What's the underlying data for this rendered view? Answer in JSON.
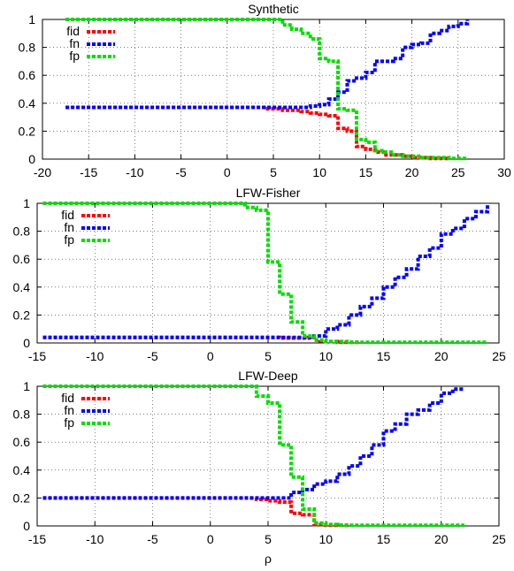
{
  "chart_data": [
    {
      "type": "line",
      "title": "Synthetic",
      "xlabel": "",
      "xlim": [
        -20,
        30
      ],
      "ylim": [
        0,
        1
      ],
      "xticks": [
        -20,
        -15,
        -10,
        -5,
        0,
        5,
        10,
        15,
        20,
        25,
        30
      ],
      "yticks": [
        0,
        0.2,
        0.4,
        0.6,
        0.8,
        1
      ],
      "ytick_labels": [
        "0",
        "0.2",
        "0.4",
        "0.6",
        "0.8",
        "1"
      ],
      "grid": true,
      "legend_position": "top-left",
      "series": [
        {
          "name": "fid",
          "color": "#ff0000",
          "x": [
            -17.5,
            3,
            4,
            5,
            6,
            7,
            8,
            9,
            10,
            11,
            12,
            13,
            14,
            15,
            16,
            17,
            18,
            19,
            20,
            21,
            22,
            23,
            24
          ],
          "y": [
            0.37,
            0.37,
            0.36,
            0.36,
            0.35,
            0.35,
            0.34,
            0.33,
            0.32,
            0.31,
            0.22,
            0.2,
            0.09,
            0.07,
            0.05,
            0.03,
            0.03,
            0.02,
            0.01,
            0.01,
            0.005,
            0.005,
            0.005
          ]
        },
        {
          "name": "fn",
          "color": "#0000ff",
          "x": [
            -17.5,
            8,
            9,
            10,
            11,
            12,
            13,
            14,
            15,
            16,
            17,
            18,
            19,
            20,
            21,
            22,
            23,
            24,
            25,
            26
          ],
          "y": [
            0.37,
            0.37,
            0.38,
            0.39,
            0.43,
            0.48,
            0.56,
            0.58,
            0.62,
            0.7,
            0.7,
            0.72,
            0.8,
            0.82,
            0.83,
            0.9,
            0.92,
            0.95,
            0.97,
            1.0
          ]
        },
        {
          "name": "fp",
          "color": "#00dd00",
          "x": [
            -17.5,
            5,
            6,
            7,
            8,
            9,
            10,
            11,
            12,
            13,
            14,
            15,
            16,
            17,
            18,
            19,
            20,
            21,
            22,
            23,
            24,
            25,
            26
          ],
          "y": [
            1.0,
            1.0,
            0.96,
            0.93,
            0.9,
            0.86,
            0.72,
            0.7,
            0.36,
            0.35,
            0.14,
            0.12,
            0.06,
            0.05,
            0.03,
            0.02,
            0.02,
            0.01,
            0.01,
            0.01,
            0.005,
            0.005,
            0.005
          ]
        }
      ]
    },
    {
      "type": "line",
      "title": "LFW-Fisher",
      "xlabel": "",
      "xlim": [
        -15,
        25
      ],
      "ylim": [
        0,
        1
      ],
      "xticks": [
        -15,
        -10,
        -5,
        0,
        5,
        10,
        15,
        20,
        25
      ],
      "yticks": [
        0,
        0.2,
        0.4,
        0.6,
        0.8,
        1
      ],
      "ytick_labels": [
        "0",
        "0.2",
        "0.4",
        "0.6",
        "0.8",
        "1"
      ],
      "grid": true,
      "legend_position": "top-left",
      "series": [
        {
          "name": "fid",
          "color": "#ff0000",
          "x": [
            -14.5,
            5,
            6,
            7,
            8,
            8.5,
            9,
            9.5,
            10,
            11,
            12,
            13
          ],
          "y": [
            0.04,
            0.04,
            0.035,
            0.035,
            0.035,
            0.04,
            0.02,
            0.015,
            0.01,
            0.005,
            0.005,
            0.005
          ]
        },
        {
          "name": "fn",
          "color": "#0000ff",
          "x": [
            -14.5,
            8,
            9,
            10,
            11,
            12,
            13,
            14,
            15,
            16,
            17,
            18,
            19,
            20,
            21,
            22,
            23,
            24
          ],
          "y": [
            0.04,
            0.04,
            0.05,
            0.1,
            0.13,
            0.2,
            0.26,
            0.32,
            0.4,
            0.47,
            0.53,
            0.62,
            0.68,
            0.78,
            0.82,
            0.89,
            0.94,
            1.0
          ]
        },
        {
          "name": "fp",
          "color": "#00dd00",
          "x": [
            -14.5,
            2.5,
            3,
            4,
            5,
            6,
            7,
            8,
            9,
            10,
            11,
            12,
            24
          ],
          "y": [
            1.0,
            1.0,
            0.97,
            0.95,
            0.58,
            0.35,
            0.15,
            0.05,
            0.02,
            0.01,
            0.01,
            0.005,
            0.005
          ]
        }
      ]
    },
    {
      "type": "line",
      "title": "LFW-Deep",
      "xlabel": "ρ",
      "xlim": [
        -15,
        25
      ],
      "ylim": [
        0,
        1
      ],
      "xticks": [
        -15,
        -10,
        -5,
        0,
        5,
        10,
        15,
        20,
        25
      ],
      "yticks": [
        0,
        0.2,
        0.4,
        0.6,
        0.8,
        1
      ],
      "ytick_labels": [
        "0",
        "0.2",
        "0.4",
        "0.6",
        "0.8",
        "1"
      ],
      "grid": true,
      "legend_position": "top-left",
      "series": [
        {
          "name": "fid",
          "color": "#ff0000",
          "x": [
            -14.5,
            3,
            4,
            5,
            6,
            7,
            8,
            9,
            10,
            11,
            12
          ],
          "y": [
            0.2,
            0.2,
            0.19,
            0.18,
            0.17,
            0.09,
            0.08,
            0.01,
            0.005,
            0.005,
            0.005
          ]
        },
        {
          "name": "fn",
          "color": "#0000ff",
          "x": [
            -14.5,
            6,
            7,
            8,
            9,
            10,
            11,
            12,
            13,
            14,
            15,
            16,
            17,
            18,
            19,
            20,
            21,
            22
          ],
          "y": [
            0.2,
            0.2,
            0.24,
            0.26,
            0.3,
            0.32,
            0.37,
            0.43,
            0.5,
            0.58,
            0.68,
            0.73,
            0.8,
            0.83,
            0.88,
            0.95,
            0.98,
            0.98
          ]
        },
        {
          "name": "fp",
          "color": "#00dd00",
          "x": [
            -14.5,
            3,
            4,
            5,
            6,
            7,
            8,
            9,
            10,
            11,
            12,
            13,
            22
          ],
          "y": [
            1.0,
            1.0,
            0.93,
            0.88,
            0.58,
            0.35,
            0.12,
            0.02,
            0.01,
            0.005,
            0.005,
            0.005,
            0.005
          ]
        }
      ]
    }
  ]
}
